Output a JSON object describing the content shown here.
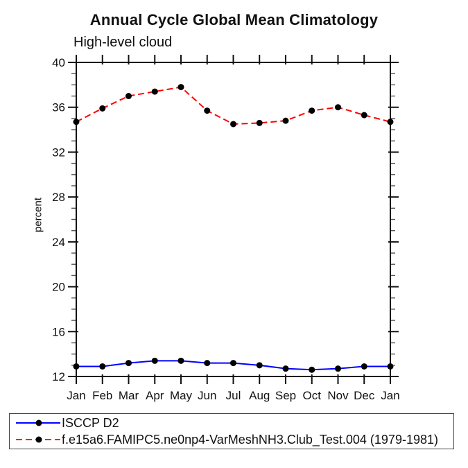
{
  "chart_data": {
    "type": "line",
    "title": "Annual Cycle Global Mean Climatology",
    "subtitle": "High-level cloud",
    "ylabel": "percent",
    "xlabel": "",
    "categories": [
      "Jan",
      "Feb",
      "Mar",
      "Apr",
      "May",
      "Jun",
      "Jul",
      "Aug",
      "Sep",
      "Oct",
      "Nov",
      "Dec",
      "Jan"
    ],
    "ylim": [
      12,
      40
    ],
    "ytick_major": 4,
    "ytick_minor": 1,
    "grid": false,
    "legend_position": "bottom-left-below-plot",
    "series": [
      {
        "name": "ISCCP D2",
        "color": "#0000ff",
        "line_style": "solid",
        "marker": "filled-circle",
        "marker_color": "#000000",
        "values": [
          12.9,
          12.9,
          13.2,
          13.4,
          13.4,
          13.2,
          13.2,
          13.0,
          12.7,
          12.6,
          12.7,
          12.9,
          12.9
        ]
      },
      {
        "name": "f.e15a6.FAMIPC5.ne0np4-VarMeshNH3.Club_Test.004 (1979-1981)",
        "color": "#ff0000",
        "line_style": "dashed",
        "marker": "filled-circle",
        "marker_color": "#000000",
        "values": [
          34.7,
          35.9,
          37.0,
          37.4,
          37.8,
          35.7,
          34.5,
          34.6,
          34.8,
          35.7,
          36.0,
          35.3,
          34.7
        ]
      }
    ]
  }
}
